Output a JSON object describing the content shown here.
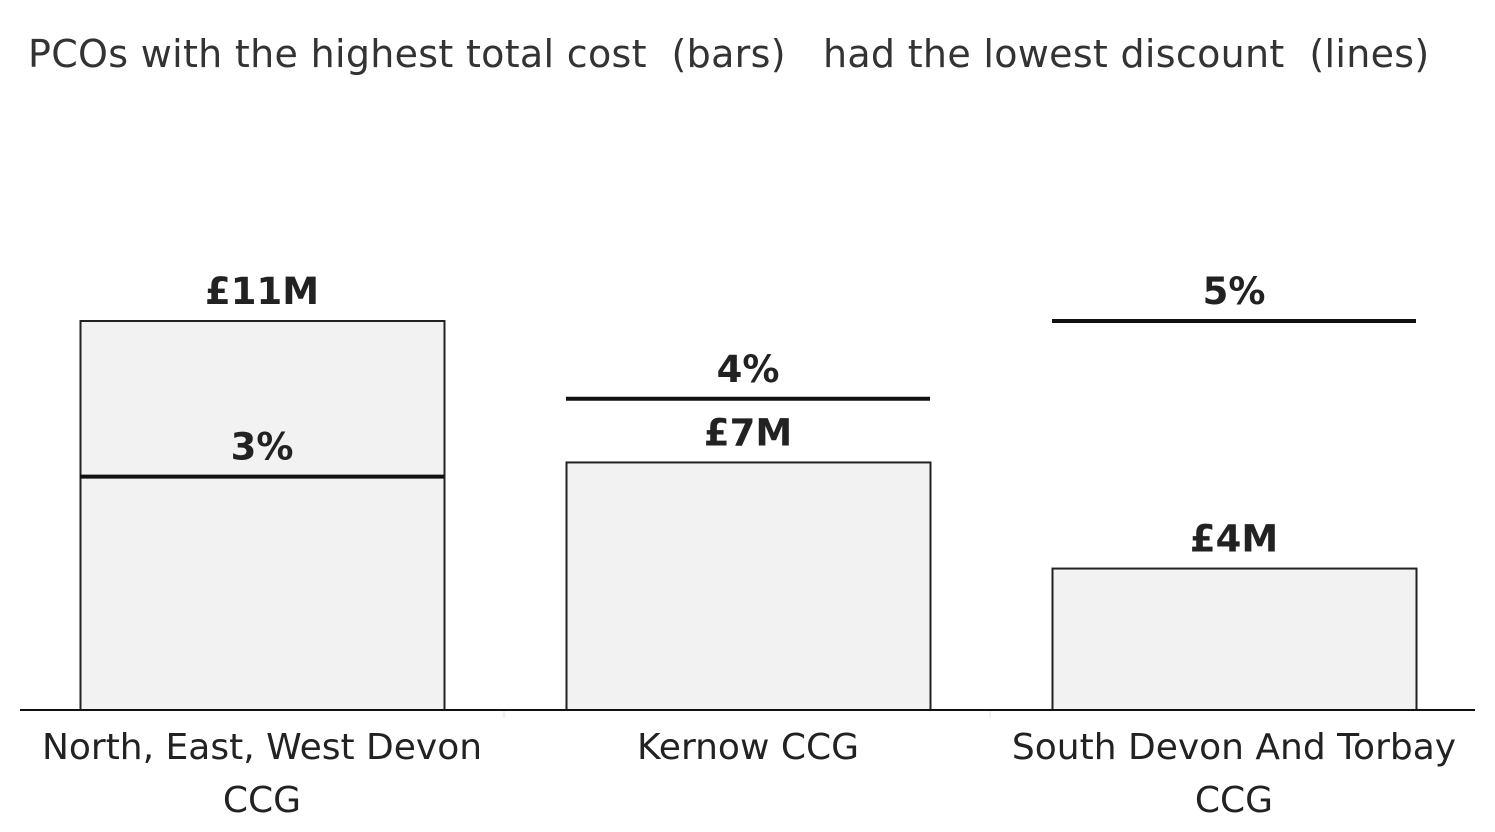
{
  "title": "PCOs with the highest total cost  (bars)   had the lowest discount  (lines)",
  "chart_data": {
    "type": "bar",
    "title": "PCOs with the highest total cost  (bars)   had the lowest discount  (lines)",
    "categories": [
      [
        "North, East, West Devon",
        "CCG"
      ],
      [
        "Kernow CCG"
      ],
      [
        "South Devon And Torbay",
        "CCG"
      ]
    ],
    "series": [
      {
        "type": "bar",
        "values": [
          11,
          7,
          4
        ],
        "labels": [
          "£11M",
          "£7M",
          "£4M"
        ]
      },
      {
        "type": "line",
        "values": [
          3,
          4,
          5
        ],
        "labels": [
          "3%",
          "4%",
          "5%"
        ]
      }
    ],
    "xlabel": "",
    "ylabel": "",
    "grid": false,
    "colors": {
      "bar_fill": "#f2f2f2",
      "bar_stroke": "#222222",
      "line": "#111111"
    }
  }
}
